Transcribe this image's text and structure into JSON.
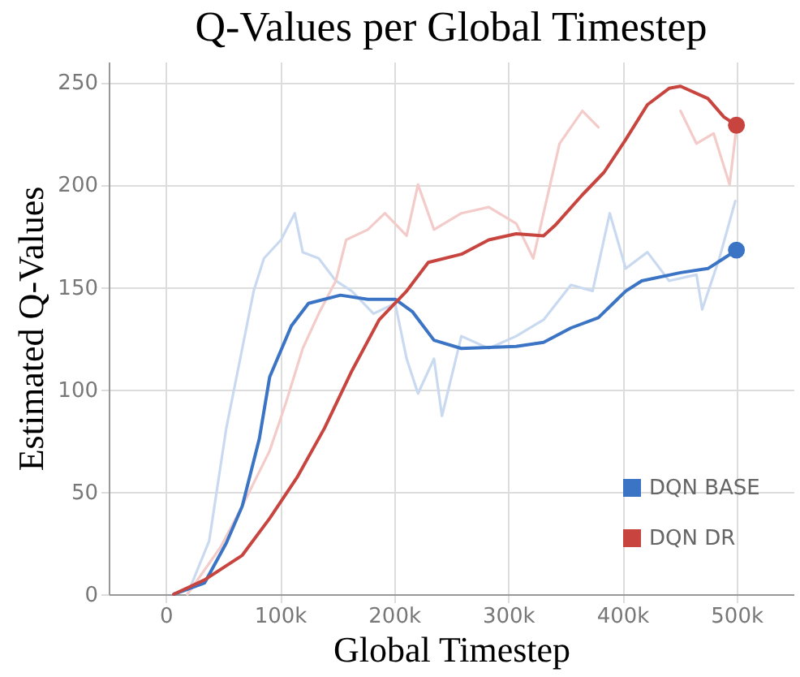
{
  "chart_data": {
    "type": "line",
    "title": "Q-Values per Global Timestep",
    "xlabel": "Global Timestep",
    "ylabel": "Estimated Q-Values",
    "xlim": [
      -50000,
      550000
    ],
    "ylim": [
      0,
      260
    ],
    "xticks": [
      {
        "value": 0,
        "label": "0"
      },
      {
        "value": 100000,
        "label": "100k"
      },
      {
        "value": 200000,
        "label": "200k"
      },
      {
        "value": 300000,
        "label": "300k"
      },
      {
        "value": 400000,
        "label": "400k"
      },
      {
        "value": 500000,
        "label": "500k"
      }
    ],
    "yticks": [
      0,
      50,
      100,
      150,
      200,
      250
    ],
    "grid": true,
    "legend": "bottom right",
    "line_style": "solid",
    "series": [
      {
        "color": "#c9daf0",
        "x": [
          19000,
          38000,
          53000,
          67000,
          77000,
          86000,
          101000,
          113000,
          120000,
          134000,
          149000,
          163000,
          182000,
          201000,
          211000,
          221000,
          235000,
          242000,
          259000,
          283000,
          307000,
          331000,
          355000,
          374000,
          389000,
          403000,
          422000,
          441000,
          465000,
          470000,
          485000,
          499000
        ],
        "values": [
          0,
          26,
          81,
          120,
          148,
          164,
          173,
          186,
          167,
          164,
          153,
          148,
          137,
          142,
          115,
          98,
          115,
          87,
          126,
          120,
          126,
          134,
          151,
          148,
          186,
          159,
          167,
          153,
          156,
          139,
          164,
          192
        ]
      },
      {
        "color": "#f3cbc9",
        "x": [
          19000,
          48000,
          67000,
          91000,
          105000,
          120000,
          134000,
          149000,
          158000,
          177000,
          192000,
          211000,
          221000,
          235000,
          259000,
          283000,
          307000,
          322000,
          331000,
          345000,
          365000,
          379000,
          384000,
          403000,
          432000,
          451000,
          465000,
          480000,
          494000,
          500000
        ],
        "values": [
          0,
          23,
          43,
          70,
          93,
          120,
          137,
          153,
          173,
          178,
          186,
          175,
          200,
          178,
          186,
          189,
          181,
          164,
          186,
          220,
          236,
          228,
          null,
          null,
          null,
          236,
          220,
          225,
          200,
          228
        ]
      },
      {
        "name": "DQN BASE",
        "color": "#3b74c4",
        "x": [
          7000,
          34000,
          53000,
          67000,
          82000,
          91000,
          110000,
          125000,
          153000,
          177000,
          201000,
          216000,
          235000,
          259000,
          307000,
          331000,
          355000,
          379000,
          403000,
          417000,
          451000,
          475000,
          489000,
          500000
        ],
        "values": [
          0,
          5.5,
          25,
          43,
          76,
          106,
          131,
          142,
          146,
          144,
          144,
          138,
          124,
          120,
          121,
          123,
          130,
          135,
          148,
          153,
          157,
          159,
          164,
          168
        ]
      },
      {
        "name": "DQN DR",
        "color": "#c8453f",
        "x": [
          7000,
          34000,
          67000,
          91000,
          115000,
          139000,
          163000,
          187000,
          211000,
          230000,
          259000,
          283000,
          307000,
          331000,
          341000,
          365000,
          384000,
          403000,
          422000,
          441000,
          451000,
          475000,
          489000,
          500000
        ],
        "values": [
          0,
          7,
          19,
          37,
          57,
          81,
          109,
          134,
          148,
          162,
          166,
          173,
          176,
          175,
          180,
          195,
          206,
          222,
          239,
          247,
          248,
          242,
          233,
          229
        ]
      },
      {
        "type": "scatter",
        "color": "#3b74c4",
        "marker": "circle",
        "x": [
          500000
        ],
        "values": [
          168
        ]
      },
      {
        "type": "scatter",
        "color": "#c8453f",
        "marker": "circle",
        "x": [
          500000
        ],
        "values": [
          229
        ]
      }
    ]
  }
}
